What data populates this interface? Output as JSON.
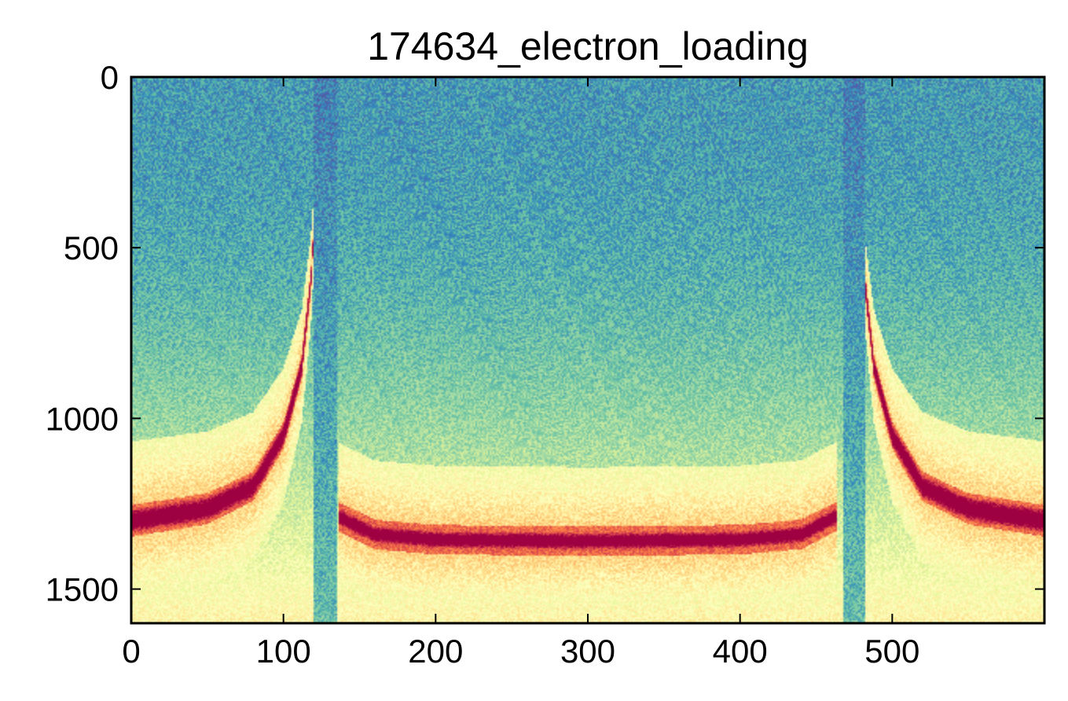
{
  "chart_data": {
    "type": "heatmap",
    "title": "174634_electron_loading",
    "xlabel": "",
    "ylabel": "",
    "colormap": "Spectral_r",
    "xlim": [
      0,
      600
    ],
    "ylim": [
      1600,
      0
    ],
    "y_axis_inverted": true,
    "xticks": [
      0,
      100,
      200,
      300,
      400,
      500
    ],
    "xtick_labels": [
      "0",
      "100",
      "200",
      "300",
      "400",
      "500"
    ],
    "yticks": [
      0,
      500,
      1000,
      1500
    ],
    "ytick_labels": [
      "0",
      "500",
      "1000",
      "1500"
    ],
    "grid": false,
    "colorbar": false,
    "features": {
      "low_signal_bands_x": [
        [
          120,
          135
        ],
        [
          468,
          482
        ]
      ],
      "edge_curve_left": [
        {
          "x": 0,
          "y": 1300
        },
        {
          "x": 50,
          "y": 1265
        },
        {
          "x": 80,
          "y": 1200
        },
        {
          "x": 100,
          "y": 1050
        },
        {
          "x": 112,
          "y": 850
        },
        {
          "x": 118,
          "y": 600
        },
        {
          "x": 122,
          "y": 300
        },
        {
          "x": 124,
          "y": 0
        }
      ],
      "center_band": [
        {
          "x": 137,
          "y": 1290
        },
        {
          "x": 160,
          "y": 1340
        },
        {
          "x": 200,
          "y": 1355
        },
        {
          "x": 300,
          "y": 1360
        },
        {
          "x": 400,
          "y": 1355
        },
        {
          "x": 440,
          "y": 1340
        },
        {
          "x": 462,
          "y": 1290
        }
      ],
      "edge_curve_right": [
        {
          "x": 476,
          "y": 0
        },
        {
          "x": 478,
          "y": 300
        },
        {
          "x": 482,
          "y": 600
        },
        {
          "x": 488,
          "y": 850
        },
        {
          "x": 500,
          "y": 1050
        },
        {
          "x": 520,
          "y": 1200
        },
        {
          "x": 550,
          "y": 1265
        },
        {
          "x": 600,
          "y": 1300
        }
      ]
    }
  }
}
